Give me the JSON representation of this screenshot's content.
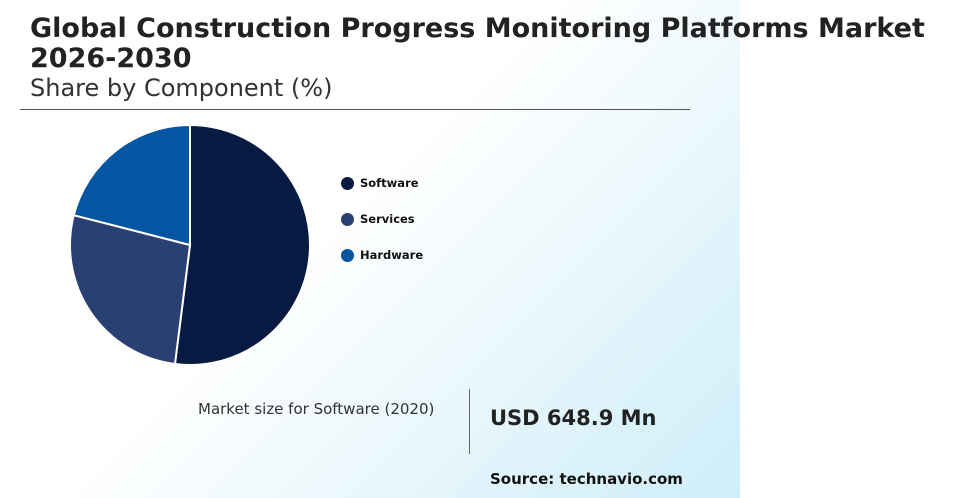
{
  "header": {
    "title": "Global Construction Progress Monitoring Platforms Market 2026-2030",
    "subtitle": "Share by Component (%)"
  },
  "chart_data": {
    "type": "pie",
    "categories": [
      "Software",
      "Services",
      "Hardware"
    ],
    "values": [
      52,
      27,
      21
    ],
    "colors": [
      "#071b42",
      "#2a4072",
      "#0456a3"
    ],
    "start_angle_deg": 0,
    "legend_placement": "right"
  },
  "market_size": {
    "label": "Market size for Software (2020)",
    "value": "USD 648.9 Mn"
  },
  "source": "Source: technavio.com"
}
